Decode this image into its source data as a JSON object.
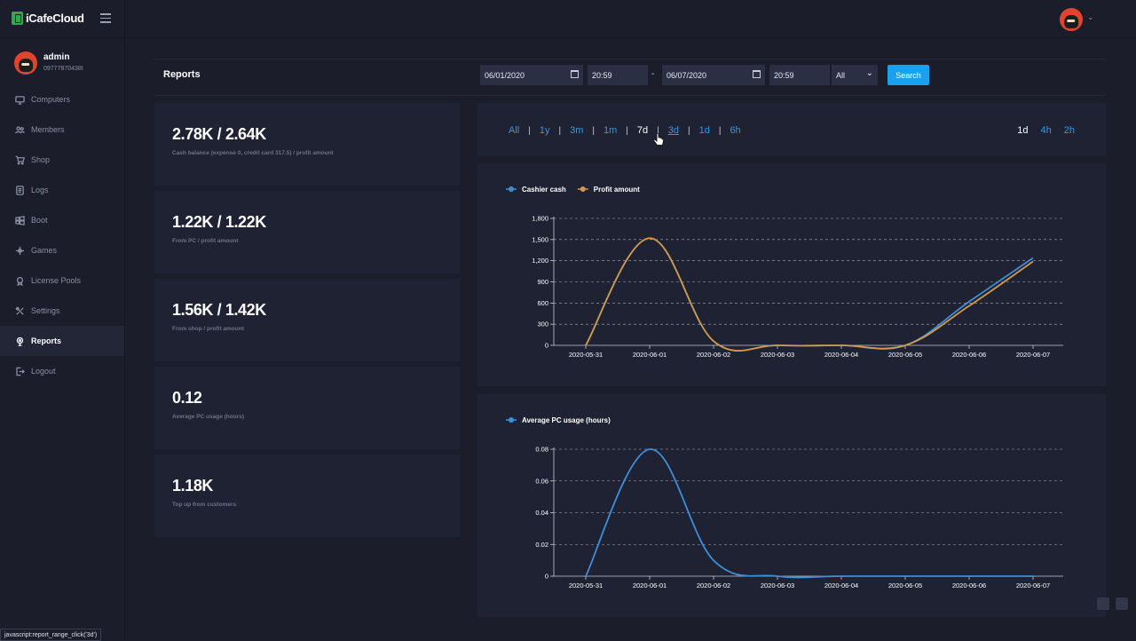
{
  "app": {
    "brand": "iCafeCloud"
  },
  "user": {
    "name": "admin",
    "phone": "09777870438I"
  },
  "sidebar": {
    "items": [
      {
        "label": "Computers",
        "icon": "monitor-icon",
        "active": false
      },
      {
        "label": "Members",
        "icon": "users-icon",
        "active": false
      },
      {
        "label": "Shop",
        "icon": "cart-icon",
        "active": false
      },
      {
        "label": "Logs",
        "icon": "log-icon",
        "active": false
      },
      {
        "label": "Boot",
        "icon": "windows-icon",
        "active": false
      },
      {
        "label": "Games",
        "icon": "gamepad-icon",
        "active": false
      },
      {
        "label": "License Pools",
        "icon": "license-icon",
        "active": false
      },
      {
        "label": "Settings",
        "icon": "settings-icon",
        "active": false
      },
      {
        "label": "Reports",
        "icon": "reports-icon",
        "active": true
      },
      {
        "label": "Logout",
        "icon": "logout-icon",
        "active": false
      }
    ]
  },
  "header": {
    "title": "Reports",
    "date_from": "06/01/2020",
    "time_from": "20:59",
    "separator": "-",
    "date_to": "06/07/2020",
    "time_to": "20:59",
    "filter_value": "All",
    "search_label": "Search"
  },
  "stats": [
    {
      "value": "2.78K / 2.64K",
      "desc": "Cash balance (expense 0, credit card 317.5) / profit amount"
    },
    {
      "value": "1.22K / 1.22K",
      "desc": "From PC / profit amount"
    },
    {
      "value": "1.56K / 1.42K",
      "desc": "From shop / profit amount"
    },
    {
      "value": "0.12",
      "desc": "Average PC usage (hours)"
    },
    {
      "value": "1.18K",
      "desc": "Top up from customers"
    }
  ],
  "ranges": {
    "left": [
      "All",
      "1y",
      "3m",
      "1m",
      "7d",
      "3d",
      "1d",
      "6h"
    ],
    "selected_left": "7d",
    "hovered_left": "3d",
    "right": [
      "1d",
      "4h",
      "2h"
    ],
    "selected_right": "1d"
  },
  "colors": {
    "accent": "#1aa1ee",
    "cashier": "#3d8fd8",
    "profit": "#d29a48",
    "avatar": "#e0442f"
  },
  "chart_data": [
    {
      "type": "line",
      "x": [
        "2020-05-31",
        "2020-06-01",
        "2020-06-02",
        "2020-06-03",
        "2020-06-04",
        "2020-06-05",
        "2020-06-06",
        "2020-06-07"
      ],
      "ylim": [
        0,
        1800
      ],
      "yticks": [
        "0",
        "300",
        "600",
        "900",
        "1,200",
        "1,500",
        "1,800"
      ],
      "grid": true,
      "legend": "top-left",
      "series": [
        {
          "name": "Cashier cash",
          "color": "#3d8fd8",
          "values": [
            0,
            1520,
            60,
            0,
            0,
            0,
            620,
            1240
          ]
        },
        {
          "name": "Profit amount",
          "color": "#d29a48",
          "values": [
            0,
            1520,
            60,
            0,
            0,
            0,
            560,
            1190
          ]
        }
      ]
    },
    {
      "type": "line",
      "x": [
        "2020-05-31",
        "2020-06-01",
        "2020-06-02",
        "2020-06-03",
        "2020-06-04",
        "2020-06-05",
        "2020-06-06",
        "2020-06-07"
      ],
      "ylim": [
        0,
        0.08
      ],
      "yticks": [
        "0",
        "0.02",
        "0.04",
        "0.06",
        "0.08"
      ],
      "grid": true,
      "legend": "top-left",
      "series": [
        {
          "name": "Average PC usage (hours)",
          "color": "#3d8fd8",
          "values": [
            0,
            0.08,
            0.01,
            0,
            0,
            0,
            0,
            0
          ]
        }
      ]
    }
  ],
  "status_bar": {
    "url": "javascript:report_range_click('3d')"
  }
}
